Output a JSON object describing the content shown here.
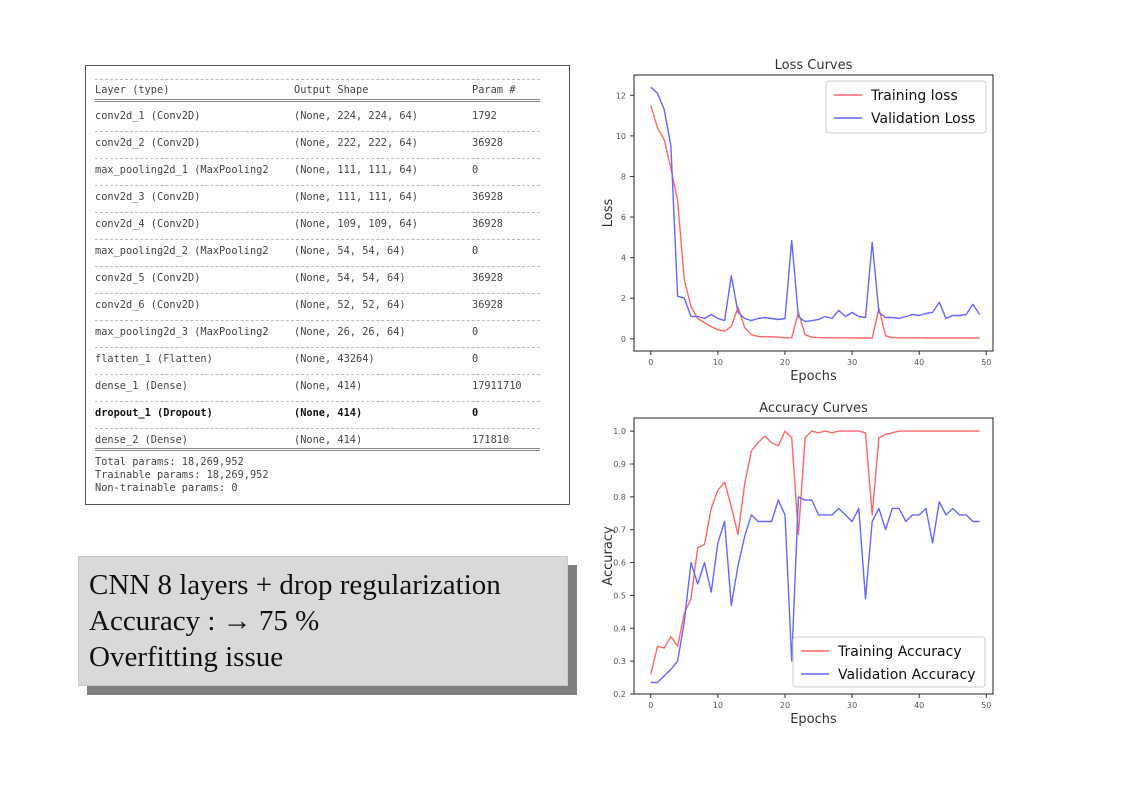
{
  "summary": {
    "header": {
      "layer": "Layer (type)",
      "shape": "Output Shape",
      "params": "Param #"
    },
    "rows": [
      {
        "layer": "conv2d_1 (Conv2D)",
        "shape": "(None, 224, 224, 64)",
        "params": "1792"
      },
      {
        "layer": "conv2d_2 (Conv2D)",
        "shape": "(None, 222, 222, 64)",
        "params": "36928"
      },
      {
        "layer": "max_pooling2d_1 (MaxPooling2",
        "shape": "(None, 111, 111, 64)",
        "params": "0"
      },
      {
        "layer": "conv2d_3 (Conv2D)",
        "shape": "(None, 111, 111, 64)",
        "params": "36928"
      },
      {
        "layer": "conv2d_4 (Conv2D)",
        "shape": "(None, 109, 109, 64)",
        "params": "36928"
      },
      {
        "layer": "max_pooling2d_2 (MaxPooling2",
        "shape": "(None, 54, 54, 64)",
        "params": "0"
      },
      {
        "layer": "conv2d_5 (Conv2D)",
        "shape": "(None, 54, 54, 64)",
        "params": "36928"
      },
      {
        "layer": "conv2d_6 (Conv2D)",
        "shape": "(None, 52, 52, 64)",
        "params": "36928"
      },
      {
        "layer": "max_pooling2d_3 (MaxPooling2",
        "shape": "(None, 26, 26, 64)",
        "params": "0"
      },
      {
        "layer": "flatten_1 (Flatten)",
        "shape": "(None, 43264)",
        "params": "0"
      },
      {
        "layer": "dense_1 (Dense)",
        "shape": "(None, 414)",
        "params": "17911710"
      },
      {
        "layer": "dropout_1 (Dropout)",
        "shape": "(None, 414)",
        "params": "0"
      },
      {
        "layer": "dense_2 (Dense)",
        "shape": "(None, 414)",
        "params": "171810"
      }
    ],
    "total": "Total params: 18,269,952",
    "trainable": "Trainable params: 18,269,952",
    "non_trainable": "Non-trainable params: 0"
  },
  "caption": {
    "line1": "CNN 8 layers + drop regularization",
    "line2": "Accuracy : → 75 %",
    "line3": "Overfitting issue"
  },
  "chart_data": [
    {
      "type": "line",
      "title": "Loss Curves",
      "xlabel": "Epochs",
      "ylabel": "Loss",
      "xlim": [
        -2.5,
        51
      ],
      "ylim": [
        -0.6,
        13
      ],
      "xticks": [
        0,
        10,
        20,
        30,
        40,
        50
      ],
      "yticks": [
        0,
        2,
        4,
        6,
        8,
        10,
        12
      ],
      "grid": false,
      "legend": "top-right",
      "x": [
        0,
        1,
        2,
        3,
        4,
        5,
        6,
        7,
        8,
        9,
        10,
        11,
        12,
        13,
        14,
        15,
        16,
        17,
        18,
        19,
        20,
        21,
        22,
        23,
        24,
        25,
        26,
        27,
        28,
        29,
        30,
        31,
        32,
        33,
        34,
        35,
        36,
        37,
        38,
        39,
        40,
        41,
        42,
        43,
        44,
        45,
        46,
        47,
        48,
        49
      ],
      "series": [
        {
          "name": "Training loss",
          "color": "#ff6666",
          "values": [
            11.5,
            10.4,
            9.8,
            8.4,
            6.8,
            2.9,
            1.6,
            1.0,
            0.8,
            0.6,
            0.45,
            0.38,
            0.6,
            1.55,
            0.55,
            0.2,
            0.12,
            0.1,
            0.1,
            0.08,
            0.05,
            0.05,
            1.3,
            0.2,
            0.08,
            0.06,
            0.05,
            0.05,
            0.05,
            0.05,
            0.04,
            0.04,
            0.04,
            0.04,
            1.5,
            0.15,
            0.06,
            0.05,
            0.05,
            0.05,
            0.05,
            0.04,
            0.04,
            0.04,
            0.04,
            0.04,
            0.04,
            0.04,
            0.04,
            0.04
          ]
        },
        {
          "name": "Validation Loss",
          "color": "#6666ff",
          "values": [
            12.4,
            12.1,
            11.3,
            9.5,
            2.1,
            2.0,
            1.1,
            1.1,
            1.0,
            1.2,
            1.0,
            0.9,
            3.1,
            1.3,
            1.0,
            0.9,
            1.0,
            1.05,
            1.0,
            0.95,
            1.0,
            4.85,
            1.1,
            0.85,
            0.9,
            0.95,
            1.1,
            1.0,
            1.4,
            1.1,
            1.3,
            1.1,
            1.05,
            4.75,
            1.3,
            1.05,
            1.05,
            1.0,
            1.1,
            1.2,
            1.15,
            1.25,
            1.3,
            1.8,
            1.0,
            1.15,
            1.15,
            1.2,
            1.7,
            1.2
          ]
        }
      ]
    },
    {
      "type": "line",
      "title": "Accuracy Curves",
      "xlabel": "Epochs",
      "ylabel": "Accuracy",
      "xlim": [
        -2.5,
        51
      ],
      "ylim": [
        0.2,
        1.04
      ],
      "xticks": [
        0,
        10,
        20,
        30,
        40,
        50
      ],
      "yticks": [
        0.2,
        0.3,
        0.4,
        0.5,
        0.6,
        0.7,
        0.8,
        0.9,
        1.0
      ],
      "grid": false,
      "legend": "bottom-right",
      "x": [
        0,
        1,
        2,
        3,
        4,
        5,
        6,
        7,
        8,
        9,
        10,
        11,
        12,
        13,
        14,
        15,
        16,
        17,
        18,
        19,
        20,
        21,
        22,
        23,
        24,
        25,
        26,
        27,
        28,
        29,
        30,
        31,
        32,
        33,
        34,
        35,
        36,
        37,
        38,
        39,
        40,
        41,
        42,
        43,
        44,
        45,
        46,
        47,
        48,
        49
      ],
      "series": [
        {
          "name": "Training Accuracy",
          "color": "#ff6666",
          "values": [
            0.26,
            0.345,
            0.34,
            0.375,
            0.345,
            0.445,
            0.49,
            0.645,
            0.655,
            0.765,
            0.82,
            0.845,
            0.77,
            0.685,
            0.84,
            0.94,
            0.965,
            0.985,
            0.965,
            0.955,
            1.0,
            0.98,
            0.685,
            0.98,
            1.0,
            0.995,
            1.0,
            0.995,
            1.0,
            1.0,
            1.0,
            1.0,
            0.995,
            0.745,
            0.98,
            0.99,
            0.995,
            1.0,
            1.0,
            1.0,
            1.0,
            1.0,
            1.0,
            1.0,
            1.0,
            1.0,
            1.0,
            1.0,
            1.0,
            1.0
          ]
        },
        {
          "name": "Validation Accuracy",
          "color": "#6666ff",
          "values": [
            0.235,
            0.235,
            0.255,
            0.275,
            0.3,
            0.42,
            0.6,
            0.535,
            0.6,
            0.51,
            0.66,
            0.725,
            0.47,
            0.59,
            0.68,
            0.745,
            0.725,
            0.725,
            0.725,
            0.79,
            0.745,
            0.3,
            0.8,
            0.79,
            0.79,
            0.745,
            0.745,
            0.745,
            0.765,
            0.745,
            0.725,
            0.765,
            0.49,
            0.725,
            0.765,
            0.7,
            0.765,
            0.765,
            0.725,
            0.745,
            0.745,
            0.765,
            0.66,
            0.785,
            0.745,
            0.765,
            0.745,
            0.745,
            0.725,
            0.725
          ]
        }
      ]
    }
  ]
}
